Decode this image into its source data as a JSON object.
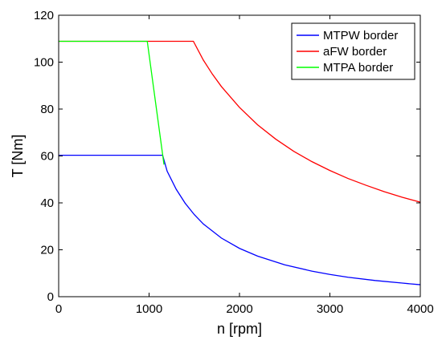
{
  "chart_data": {
    "type": "line",
    "xlabel": "n [rpm]",
    "ylabel": "T [Nm]",
    "xlim": [
      0,
      4000
    ],
    "ylim": [
      0,
      120
    ],
    "xticks": [
      0,
      1000,
      2000,
      3000,
      4000
    ],
    "yticks": [
      0,
      20,
      40,
      60,
      80,
      100,
      120
    ],
    "grid": "off",
    "legend_position": "top-right",
    "series": [
      {
        "name": "MTPW border",
        "color": "#0000ff",
        "x": [
          0,
          1150,
          1200,
          1300,
          1400,
          1500,
          1600,
          1800,
          2000,
          2200,
          2500,
          2800,
          3000,
          3200,
          3500,
          3800,
          4000
        ],
        "y": [
          60.3,
          60.3,
          53.5,
          45.8,
          39.8,
          35.0,
          31.0,
          25.0,
          20.6,
          17.3,
          13.6,
          10.9,
          9.5,
          8.3,
          6.9,
          5.8,
          5.1
        ]
      },
      {
        "name": "aFW border",
        "color": "#ff0000",
        "x": [
          0,
          1490,
          1600,
          1700,
          1800,
          2000,
          2200,
          2400,
          2600,
          2800,
          3000,
          3200,
          3400,
          3600,
          3800,
          4000
        ],
        "y": [
          108.9,
          108.9,
          100.9,
          94.9,
          89.6,
          80.7,
          73.3,
          67.2,
          62.0,
          57.6,
          53.8,
          50.4,
          47.5,
          44.8,
          42.4,
          40.3
        ]
      },
      {
        "name": "MTPA border",
        "color": "#00ff00",
        "x": [
          0,
          980,
          1165
        ],
        "y": [
          108.9,
          108.9,
          56.3
        ]
      }
    ]
  }
}
